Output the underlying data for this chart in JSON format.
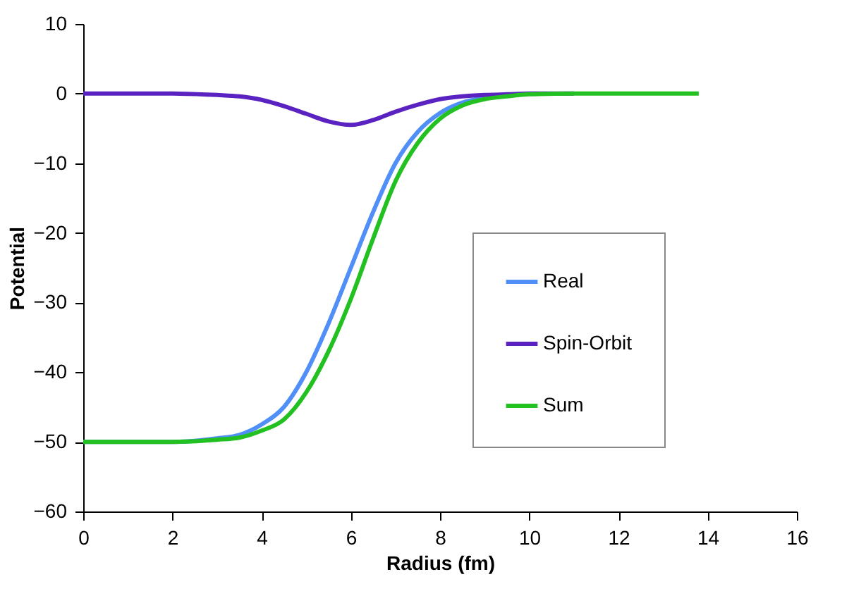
{
  "chart_data": {
    "type": "line",
    "xlabel": "Radius (fm)",
    "ylabel": "Potential",
    "x": [
      0,
      1,
      2,
      3,
      3.5,
      4,
      4.5,
      5,
      5.5,
      6,
      6.5,
      7,
      7.5,
      8,
      8.5,
      9,
      9.5,
      10,
      11,
      12,
      13,
      13.8
    ],
    "series": [
      {
        "name": "Real",
        "color": "#4f8ff7",
        "values": [
          -50,
          -50,
          -50,
          -49.5,
          -49,
          -47.5,
          -45,
          -40,
          -33,
          -25,
          -17,
          -10,
          -5.5,
          -2.8,
          -1.3,
          -0.6,
          -0.3,
          null,
          null,
          null,
          null,
          null
        ]
      },
      {
        "name": "Spin-Orbit",
        "color": "#5a22c0",
        "values": [
          0,
          0,
          0,
          -0.2,
          -0.4,
          -0.9,
          -1.8,
          -2.9,
          -4,
          -4.5,
          -3.8,
          -2.6,
          -1.6,
          -0.8,
          -0.4,
          -0.2,
          -0.1,
          0,
          0,
          null,
          null,
          null
        ]
      },
      {
        "name": "Sum",
        "color": "#22c021",
        "values": [
          -50,
          -50,
          -50,
          -49.7,
          -49.4,
          -48.4,
          -46.8,
          -42.9,
          -37,
          -29.5,
          -20.8,
          -12.6,
          -7.1,
          -3.6,
          -1.7,
          -0.8,
          -0.4,
          -0.1,
          0,
          0,
          0,
          0
        ]
      }
    ],
    "xlim": [
      0,
      16
    ],
    "xticks": [
      0,
      2,
      4,
      6,
      8,
      10,
      12,
      14,
      16
    ],
    "ylim": [
      -60,
      10
    ],
    "yticks": [
      -60,
      -50,
      -40,
      -30,
      -20,
      -10,
      0,
      10
    ],
    "grid": false,
    "legend": "right",
    "marker": "none",
    "line_style": "solid"
  }
}
